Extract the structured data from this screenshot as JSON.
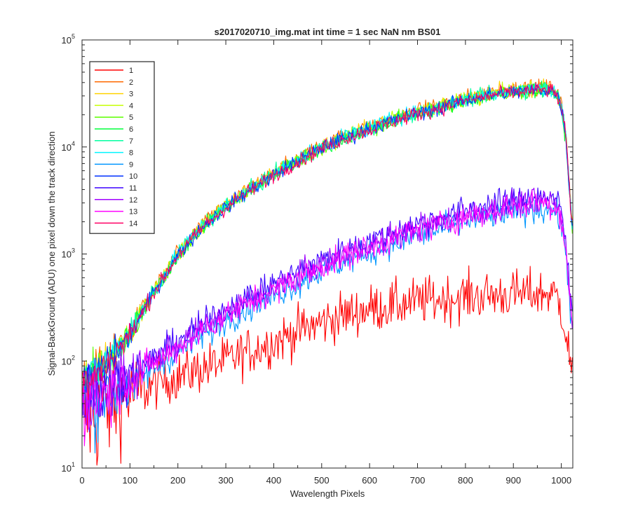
{
  "chart_data": {
    "type": "line",
    "title": "s2017020710_img.mat int time = 1 sec  NaN nm BS01",
    "xlabel": "Wavelength Pixels",
    "ylabel": "Signal-BackGround (ADU) one pixel down the track direction",
    "xlim": [
      0,
      1024
    ],
    "ylim": [
      10,
      100000
    ],
    "yscale": "log",
    "grid": false,
    "legend_location": "top-left",
    "x_ticks": [
      "0",
      "100",
      "200",
      "300",
      "400",
      "500",
      "600",
      "700",
      "800",
      "900",
      "1000"
    ],
    "x_tick_values": [
      0,
      100,
      200,
      300,
      400,
      500,
      600,
      700,
      800,
      900,
      1000
    ],
    "y_tick_bases": [
      "10",
      "10",
      "10",
      "10",
      "10"
    ],
    "y_tick_exponents": [
      "1",
      "2",
      "3",
      "4",
      "5"
    ],
    "y_tick_values": [
      10,
      100,
      1000,
      10000,
      100000
    ],
    "series": [
      {
        "name": "1",
        "color": "#ff0000",
        "group": "low",
        "scale": 1.0,
        "noise": 0.16
      },
      {
        "name": "2",
        "color": "#ff6a00",
        "group": "high",
        "scale": 1.04,
        "noise": 0.05
      },
      {
        "name": "3",
        "color": "#ffd200",
        "group": "high",
        "scale": 1.02,
        "noise": 0.05
      },
      {
        "name": "4",
        "color": "#c6ff00",
        "group": "high",
        "scale": 1.0,
        "noise": 0.05
      },
      {
        "name": "5",
        "color": "#5cff00",
        "group": "high",
        "scale": 0.98,
        "noise": 0.05
      },
      {
        "name": "6",
        "color": "#00ff3c",
        "group": "high",
        "scale": 0.97,
        "noise": 0.05
      },
      {
        "name": "7",
        "color": "#00ffa0",
        "group": "high",
        "scale": 0.99,
        "noise": 0.05
      },
      {
        "name": "8",
        "color": "#00f5ff",
        "group": "high",
        "scale": 1.01,
        "noise": 0.05
      },
      {
        "name": "9",
        "color": "#0096ff",
        "group": "mid",
        "scale": 0.85,
        "noise": 0.09
      },
      {
        "name": "10",
        "color": "#0032ff",
        "group": "high",
        "scale": 0.98,
        "noise": 0.05
      },
      {
        "name": "11",
        "color": "#3c00ff",
        "group": "mid",
        "scale": 1.1,
        "noise": 0.09
      },
      {
        "name": "12",
        "color": "#a000ff",
        "group": "mid",
        "scale": 1.0,
        "noise": 0.09
      },
      {
        "name": "13",
        "color": "#ff00ff",
        "group": "mid",
        "scale": 0.95,
        "noise": 0.09
      },
      {
        "name": "14",
        "color": "#ff0064",
        "group": "high",
        "scale": 0.97,
        "noise": 0.05
      }
    ],
    "profiles": {
      "high": {
        "x": [
          0,
          20,
          50,
          100,
          150,
          200,
          250,
          300,
          350,
          400,
          450,
          500,
          550,
          600,
          650,
          700,
          750,
          800,
          850,
          900,
          950,
          975,
          990,
          1000,
          1010,
          1018,
          1024
        ],
        "y": [
          55,
          70,
          95,
          180,
          450,
          1000,
          1800,
          2800,
          4000,
          5600,
          7500,
          10000,
          12500,
          15000,
          18000,
          21000,
          24000,
          28000,
          31000,
          33500,
          35000,
          35000,
          32000,
          25000,
          12000,
          3500,
          1600
        ]
      },
      "mid": {
        "x": [
          0,
          20,
          50,
          100,
          150,
          200,
          250,
          300,
          350,
          400,
          450,
          500,
          550,
          600,
          650,
          700,
          750,
          800,
          850,
          900,
          950,
          975,
          990,
          1000,
          1010,
          1018,
          1024
        ],
        "y": [
          45,
          48,
          55,
          70,
          100,
          140,
          200,
          280,
          370,
          480,
          620,
          800,
          1000,
          1200,
          1450,
          1750,
          2000,
          2350,
          2600,
          2900,
          3100,
          3100,
          2900,
          2300,
          1100,
          400,
          220
        ]
      },
      "low": {
        "x": [
          0,
          20,
          50,
          100,
          150,
          200,
          250,
          300,
          350,
          400,
          450,
          500,
          550,
          600,
          650,
          700,
          750,
          800,
          850,
          900,
          950,
          975,
          990,
          1000,
          1010,
          1018,
          1024
        ],
        "y": [
          35,
          32,
          36,
          48,
          60,
          72,
          85,
          100,
          125,
          150,
          190,
          230,
          270,
          310,
          330,
          360,
          380,
          400,
          410,
          420,
          430,
          430,
          400,
          320,
          180,
          100,
          85
        ]
      }
    }
  }
}
